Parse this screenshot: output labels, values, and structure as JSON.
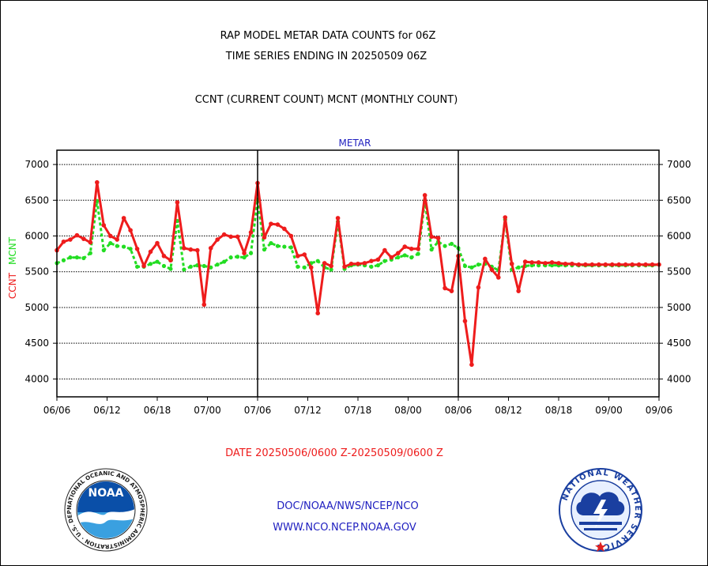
{
  "header": {
    "title_line1": "RAP MODEL METAR DATA COUNTS for 06Z",
    "title_line2": "TIME SERIES ENDING IN 20250509 06Z",
    "subtitle": "CCNT (CURRENT COUNT) MCNT (MONTHLY COUNT)"
  },
  "footer": {
    "date_range": "DATE 20250506/0600 Z-20250509/0600 Z",
    "org_path": "DOC/NOAA/NWS/NCEP/NCO",
    "website": "WWW.NCO.NCEP.NOAA.GOV"
  },
  "logos": {
    "noaa_text": "NOAA",
    "noaa_ring": "NATIONAL OCEANIC AND ATMOSPHERIC ADMINISTRATION · U.S. DEPARTMENT OF COMMERCE ·",
    "nws_ring": "NATIONAL WEATHER SERVICE"
  },
  "colors": {
    "ccnt": "#ee1c1c",
    "mcnt": "#22dd22",
    "panel_label": "#1f1fbf",
    "footer_blue": "#2020c0",
    "date_red": "#ee1c1c"
  },
  "chart_data": {
    "type": "line",
    "panel_label": "METAR",
    "ylabel_left_ccnt": "CCNT",
    "ylabel_left_mcnt": "MCNT",
    "ylim": [
      3750,
      7200
    ],
    "yticks": [
      4000,
      4500,
      5000,
      5500,
      6000,
      6500,
      7000
    ],
    "grid": true,
    "x_domain": [
      0,
      90
    ],
    "panel_dividers": [
      30,
      60
    ],
    "x_ticks": [
      "06/06",
      "06/12",
      "06/18",
      "07/00",
      "07/06",
      "07/12",
      "07/18",
      "08/00",
      "08/06",
      "08/12",
      "08/18",
      "09/00",
      "09/06"
    ],
    "series": [
      {
        "name": "CCNT",
        "x": [
          0,
          1,
          2,
          3,
          4,
          5,
          6,
          7,
          8,
          9,
          10,
          11,
          12,
          13,
          14,
          15,
          16,
          17,
          18,
          19,
          20,
          21,
          22,
          23,
          24,
          25,
          26,
          27,
          28,
          29,
          30,
          31,
          32,
          33,
          34,
          35,
          36,
          37,
          38,
          39,
          40,
          41,
          42,
          43,
          44,
          45,
          46,
          47,
          48,
          49,
          50,
          51,
          52,
          53,
          54,
          55,
          56,
          57,
          58,
          59,
          60,
          61,
          62,
          63,
          64,
          65,
          66,
          67,
          68,
          69,
          70,
          71,
          72,
          73,
          74,
          75,
          76,
          77,
          78,
          79,
          80,
          81,
          82,
          83,
          84,
          85,
          86,
          87,
          88,
          89,
          90
        ],
        "values": [
          5800,
          5920,
          5950,
          6010,
          5960,
          5910,
          6750,
          6150,
          6000,
          5950,
          6250,
          6080,
          5820,
          5580,
          5780,
          5900,
          5720,
          5660,
          6470,
          5830,
          5810,
          5800,
          5040,
          5830,
          5950,
          6020,
          5990,
          5990,
          5760,
          6050,
          6740,
          5980,
          6170,
          6160,
          6100,
          6000,
          5720,
          5740,
          5560,
          4920,
          5620,
          5580,
          6250,
          5570,
          5610,
          5610,
          5620,
          5650,
          5670,
          5800,
          5700,
          5760,
          5850,
          5820,
          5820,
          6570,
          5990,
          5970,
          5270,
          5230,
          5720,
          4810,
          4200,
          5280,
          5680,
          5530,
          5420,
          6260,
          5610,
          5230,
          5640,
          5630,
          5630,
          5620,
          5630,
          5620,
          5610,
          5610,
          5600,
          5600,
          5600,
          5600,
          5600,
          5600,
          5600,
          5600,
          5600,
          5600,
          5600,
          5600,
          5600
        ]
      },
      {
        "name": "MCNT",
        "x": [
          0,
          1,
          2,
          3,
          4,
          5,
          6,
          7,
          8,
          9,
          10,
          11,
          12,
          13,
          14,
          15,
          16,
          17,
          18,
          19,
          20,
          21,
          22,
          23,
          24,
          25,
          26,
          27,
          28,
          29,
          30,
          31,
          32,
          33,
          34,
          35,
          36,
          37,
          38,
          39,
          40,
          41,
          42,
          43,
          44,
          45,
          46,
          47,
          48,
          49,
          50,
          51,
          52,
          53,
          54,
          55,
          56,
          57,
          58,
          59,
          60,
          61,
          62,
          63,
          64,
          65,
          66,
          67,
          68,
          69,
          70,
          71,
          72,
          73,
          74,
          75,
          76,
          77,
          78,
          79,
          80,
          81,
          82,
          83,
          84,
          85,
          86,
          87,
          88,
          89,
          90
        ],
        "values": [
          5620,
          5660,
          5700,
          5700,
          5690,
          5760,
          6490,
          5800,
          5900,
          5860,
          5850,
          5820,
          5570,
          5570,
          5610,
          5640,
          5580,
          5540,
          6210,
          5530,
          5570,
          5590,
          5580,
          5560,
          5600,
          5640,
          5700,
          5710,
          5700,
          5760,
          6510,
          5810,
          5900,
          5860,
          5850,
          5840,
          5570,
          5560,
          5620,
          5650,
          5560,
          5530,
          6200,
          5540,
          5590,
          5600,
          5590,
          5570,
          5590,
          5650,
          5670,
          5700,
          5730,
          5700,
          5750,
          6490,
          5810,
          5920,
          5860,
          5890,
          5830,
          5580,
          5560,
          5600,
          5610,
          5570,
          5520,
          6230,
          5530,
          5560,
          5580,
          5590,
          5590,
          5590,
          5590,
          5590,
          5590,
          5590,
          5590,
          5590,
          5590,
          5590,
          5590,
          5590,
          5590,
          5590,
          5590,
          5590,
          5590,
          5590,
          5600
        ]
      }
    ]
  }
}
